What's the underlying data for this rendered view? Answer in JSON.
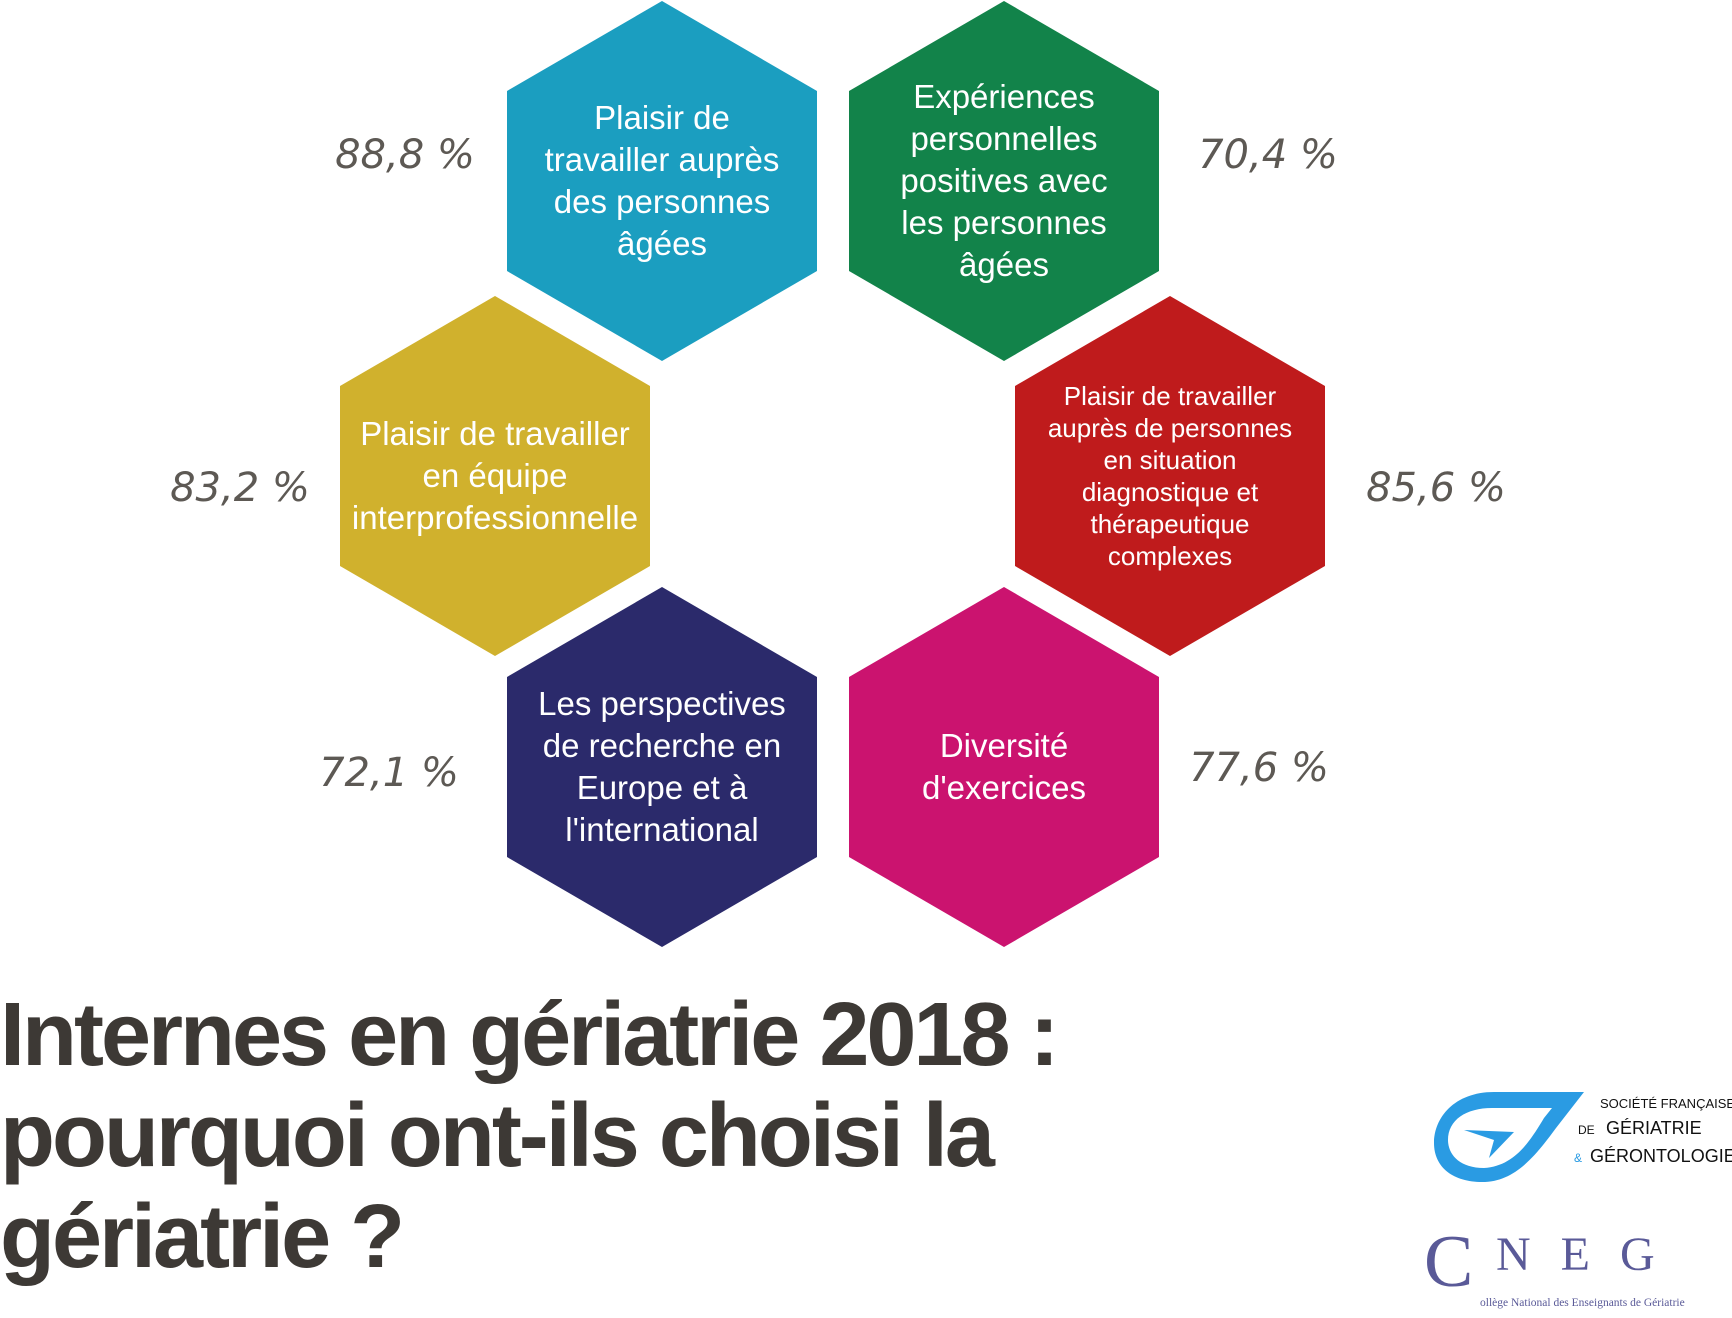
{
  "items": [
    {
      "label": "Plaisir de travailler auprès des personnes âgées",
      "value": "88,8 %",
      "color": "#1b9ec0"
    },
    {
      "label": "Expériences personnelles positives avec les personnes âgées",
      "value": "70,4 %",
      "color": "#12834a"
    },
    {
      "label": "Plaisir de travailler en équipe interprofessionnelle",
      "value": "83,2 %",
      "color": "#d0b12d"
    },
    {
      "label": "Plaisir de travailler auprès de personnes en situation diagnostique et thérapeutique complexes",
      "value": "85,6 %",
      "color": "#bf1b1c"
    },
    {
      "label": "Les perspectives de recherche en Europe et à l'international",
      "value": "72,1 %",
      "color": "#2b2a6b"
    },
    {
      "label": "Diversité d'exercices",
      "value": "77,6 %",
      "color": "#cb136f"
    }
  ],
  "title": {
    "line1": "Internes en gériatrie 2018 :",
    "line2": "pourquoi ont-ils choisi la",
    "line3": "gériatrie ?"
  },
  "logos": {
    "sfgg": {
      "line1": "SOCIÉTÉ FRANÇAISE",
      "line2_prefix": "DE",
      "line2": "GÉRIATRIE",
      "line3_prefix": "&",
      "line3": "GÉRONTOLOGIE",
      "color": "#2a9be3"
    },
    "cneg": {
      "letters": "CNEG",
      "subtitle": "ollège National des Enseignants de Gériatrie",
      "color": "#5a5a98"
    }
  }
}
